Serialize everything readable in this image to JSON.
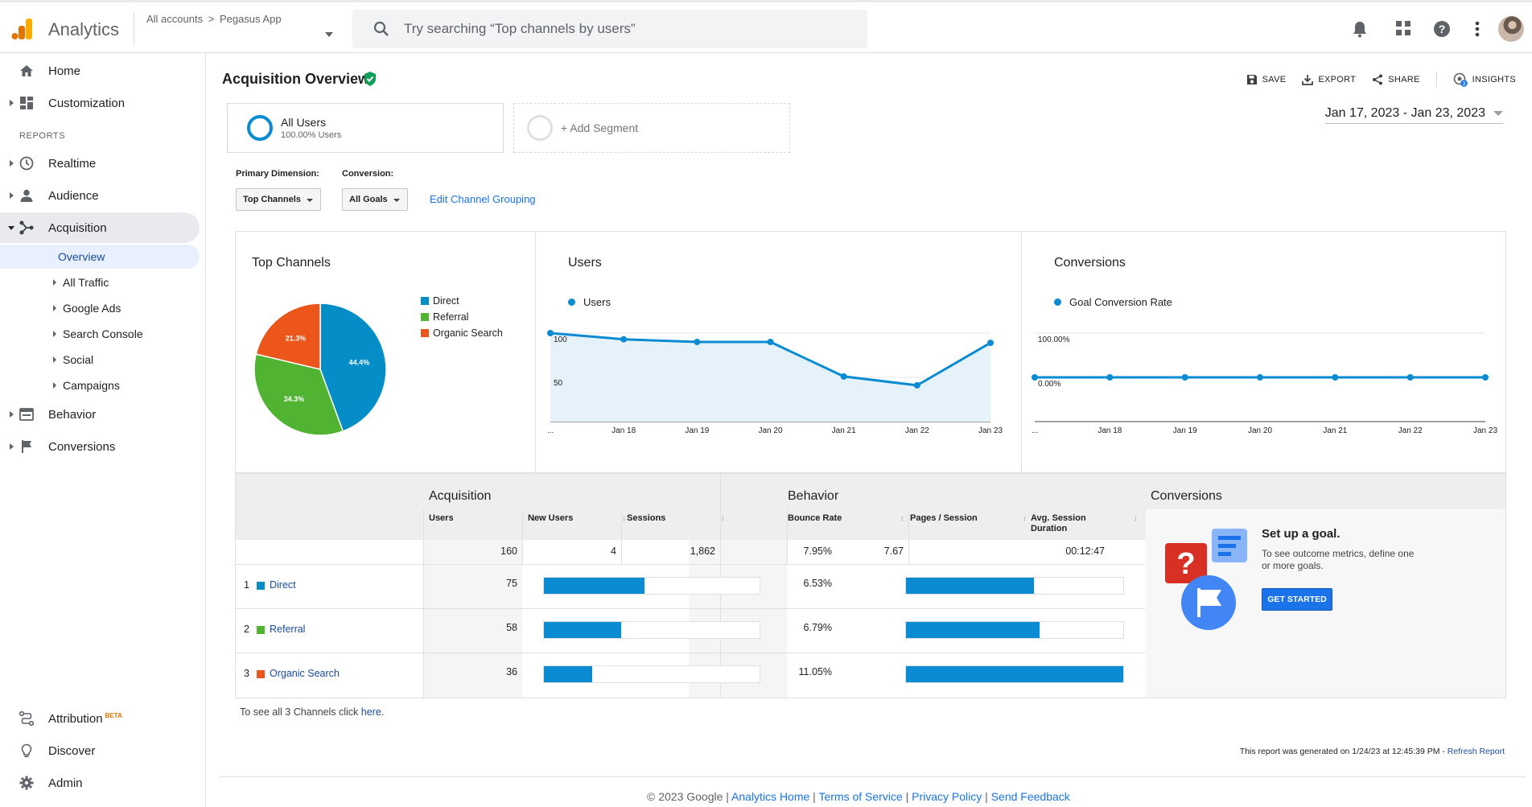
{
  "app": {
    "title": "Analytics",
    "brand_colors": [
      "#f9ab00",
      "#e37400"
    ]
  },
  "account": {
    "breadcrumb_root": "All accounts",
    "breadcrumb_sep": ">",
    "property": "Pegasus App"
  },
  "search": {
    "placeholder": "Try searching “Top channels by users”"
  },
  "toolbar": {
    "icons": [
      "bell-icon",
      "apps-icon",
      "help-icon",
      "more-vert-icon",
      "avatar"
    ]
  },
  "sidebar": {
    "home": "Home",
    "customization": "Customization",
    "reports_header": "REPORTS",
    "realtime": "Realtime",
    "audience": "Audience",
    "acquisition": "Acquisition",
    "acq_sub": [
      "Overview",
      "All Traffic",
      "Google Ads",
      "Search Console",
      "Social",
      "Campaigns"
    ],
    "behavior": "Behavior",
    "conversions": "Conversions",
    "attribution": "Attribution",
    "beta": "BETA",
    "discover": "Discover",
    "admin": "Admin"
  },
  "page": {
    "title": "Acquisition Overview",
    "actions": {
      "save": "SAVE",
      "export": "EXPORT",
      "share": "SHARE",
      "insights": "INSIGHTS",
      "insights_badge": "3"
    },
    "segment": {
      "name": "All Users",
      "sub": "100.00% Users",
      "add": "+ Add Segment"
    },
    "date_range": "Jan 17, 2023 - Jan 23, 2023",
    "primary_dimension_label": "Primary Dimension:",
    "primary_dimension_value": "Top Channels",
    "conversion_label": "Conversion:",
    "conversion_value": "All Goals",
    "edit_link": "Edit Channel Grouping"
  },
  "chart_data": [
    {
      "type": "pie",
      "title": "Top Channels",
      "categories": [
        "Direct",
        "Referral",
        "Organic Search"
      ],
      "values": [
        44.4,
        34.3,
        21.3
      ],
      "labels": [
        "44.4%",
        "34.3%",
        "21.3%"
      ],
      "colors": [
        "#058dc7",
        "#50b432",
        "#ed561b"
      ],
      "legend": "right"
    },
    {
      "type": "area",
      "title": "Users",
      "series": [
        {
          "name": "Users",
          "values": [
            100,
            93,
            90,
            90,
            51,
            41,
            89
          ]
        }
      ],
      "x": [
        "...",
        "Jan 18",
        "Jan 19",
        "Jan 20",
        "Jan 21",
        "Jan 22",
        "Jan 23"
      ],
      "yticks": [
        "100",
        "50"
      ],
      "ylim": [
        0,
        100
      ],
      "grid": true,
      "legend": "top-left"
    },
    {
      "type": "line",
      "title": "Conversions",
      "series": [
        {
          "name": "Goal Conversion Rate",
          "values": [
            0,
            0,
            0,
            0,
            0,
            0,
            0
          ]
        }
      ],
      "x": [
        "...",
        "Jan 18",
        "Jan 19",
        "Jan 20",
        "Jan 21",
        "Jan 22",
        "Jan 23"
      ],
      "yticks": [
        "100.00%",
        "0.00%"
      ],
      "ylim": [
        -100,
        100
      ],
      "grid": true,
      "legend": "top-left"
    }
  ],
  "table": {
    "groups": {
      "acquisition": "Acquisition",
      "behavior": "Behavior",
      "conversions": "Conversions"
    },
    "columns": [
      "Users",
      "New Users",
      "Sessions",
      "Bounce Rate",
      "Pages / Session",
      "Avg. Session Duration"
    ],
    "sort_desc": "↓",
    "sort_idle": "↕",
    "totals": {
      "users": "160",
      "new_users": "4",
      "sessions": "1,862",
      "bounce": "7.95%",
      "pages": "7.67",
      "duration": "00:12:47"
    },
    "rows": [
      {
        "rank": "1",
        "name": "Direct",
        "color": "#058dc7",
        "users": "75",
        "users_frac": 0.465,
        "bounce": "6.53%",
        "bounce_frac": 0.59
      },
      {
        "rank": "2",
        "name": "Referral",
        "color": "#50b432",
        "users": "58",
        "users_frac": 0.36,
        "bounce": "6.79%",
        "bounce_frac": 0.614
      },
      {
        "rank": "3",
        "name": "Organic Search",
        "color": "#ed561b",
        "users": "36",
        "users_frac": 0.225,
        "bounce": "11.05%",
        "bounce_frac": 1.0
      }
    ]
  },
  "goal": {
    "title": "Set up a goal.",
    "text": "To see outcome metrics, define one or more goals.",
    "button": "GET STARTED"
  },
  "see_all": {
    "prefix": "To see all 3 Channels click ",
    "link": "here",
    "suffix": "."
  },
  "generated": {
    "text": "This report was generated on 1/24/23 at 12:45:39 PM - ",
    "link": "Refresh Report"
  },
  "footer": {
    "copyright": "© 2023 Google | ",
    "links": [
      "Analytics Home",
      "Terms of Service",
      "Privacy Policy",
      "Send Feedback"
    ],
    "sep": " | "
  }
}
